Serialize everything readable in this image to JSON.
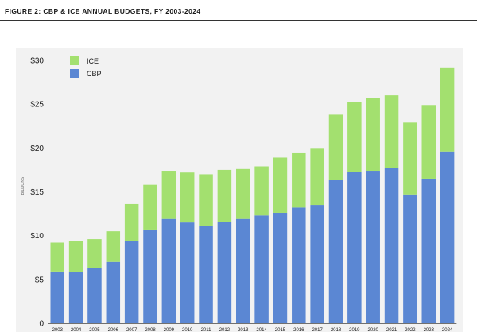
{
  "figure": {
    "title": "FIGURE 2: CBP & ICE ANNUAL BUDGETS, FY 2003-2024"
  },
  "colors": {
    "cbp": "#5b87d3",
    "ice": "#a3e06f",
    "text": "#1a1a1a",
    "rule": "#333333",
    "panel": "#f2f2f2"
  },
  "chart_data": {
    "type": "bar",
    "stacked": true,
    "title": "",
    "xlabel": "",
    "ylabel": "BILLIONS",
    "ylim": [
      0,
      30
    ],
    "y_ticks": [
      {
        "value": 0,
        "label": "0"
      },
      {
        "value": 5,
        "label": "$5"
      },
      {
        "value": 10,
        "label": "$10"
      },
      {
        "value": 15,
        "label": "$15"
      },
      {
        "value": 20,
        "label": "$20"
      },
      {
        "value": 25,
        "label": "$25"
      },
      {
        "value": 30,
        "label": "$30"
      }
    ],
    "grid": false,
    "legend_position": "top-left",
    "categories": [
      "2003",
      "2004",
      "2005",
      "2006",
      "2007",
      "2008",
      "2009",
      "2010",
      "2011",
      "2012",
      "2013",
      "2014",
      "2015",
      "2016",
      "2017",
      "2018",
      "2019",
      "2020",
      "2021",
      "2022",
      "2023",
      "2024"
    ],
    "series": [
      {
        "name": "CBP",
        "color": "#5b87d3",
        "values": [
          5.9,
          5.8,
          6.3,
          7.0,
          9.4,
          10.7,
          11.9,
          11.5,
          11.1,
          11.6,
          11.9,
          12.3,
          12.6,
          13.2,
          13.5,
          16.4,
          17.3,
          17.4,
          17.7,
          14.7,
          16.5,
          19.6
        ]
      },
      {
        "name": "ICE",
        "color": "#a3e06f",
        "values": [
          3.3,
          3.6,
          3.3,
          3.5,
          4.2,
          5.1,
          5.5,
          5.7,
          5.9,
          5.9,
          5.7,
          5.6,
          6.3,
          6.2,
          6.5,
          7.4,
          7.9,
          8.3,
          8.3,
          8.2,
          8.4,
          9.6
        ]
      }
    ]
  }
}
